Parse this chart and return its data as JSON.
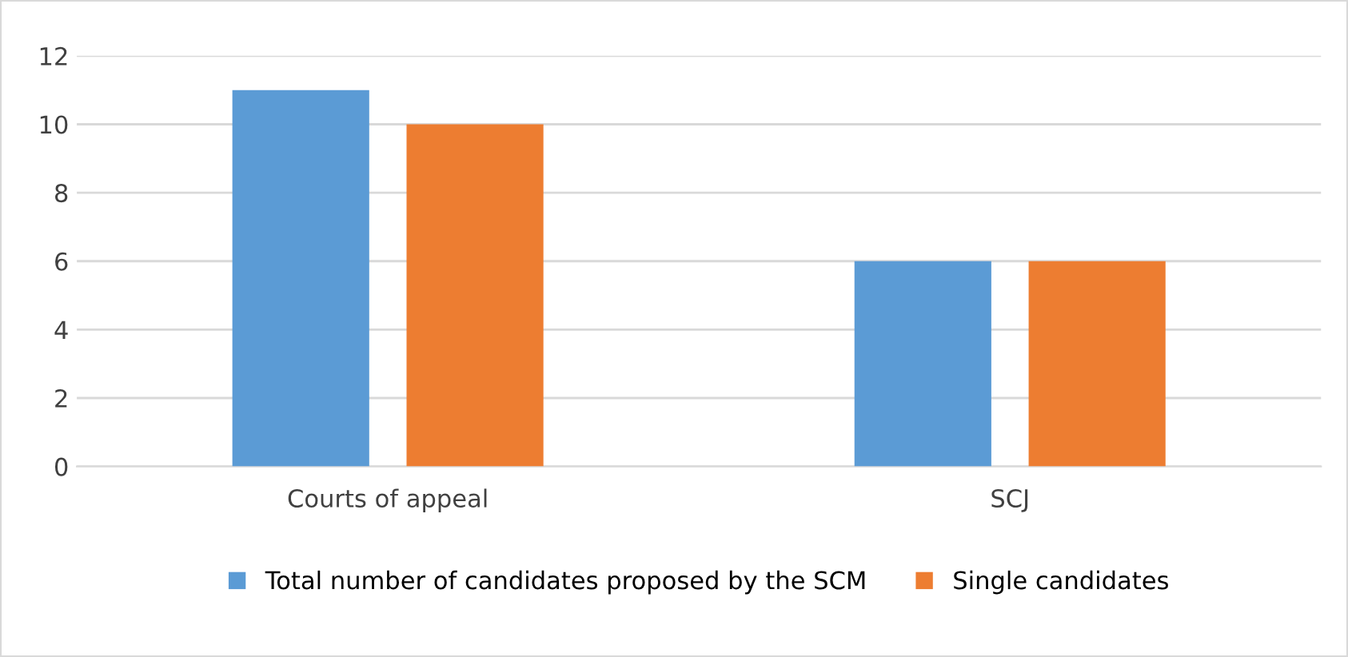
{
  "chart_data": {
    "type": "bar",
    "categories": [
      "Courts of appeal",
      "SCJ"
    ],
    "series": [
      {
        "name": "Total number of candidates proposed by the SCM",
        "color": "#5b9bd5",
        "values": [
          11,
          6
        ]
      },
      {
        "name": "Single candidates",
        "color": "#ed7d31",
        "values": [
          10,
          6
        ]
      }
    ],
    "ylim": [
      0,
      12
    ],
    "yticks": [
      0,
      2,
      4,
      6,
      8,
      10,
      12
    ],
    "grid": "y",
    "legend": "bottom"
  }
}
